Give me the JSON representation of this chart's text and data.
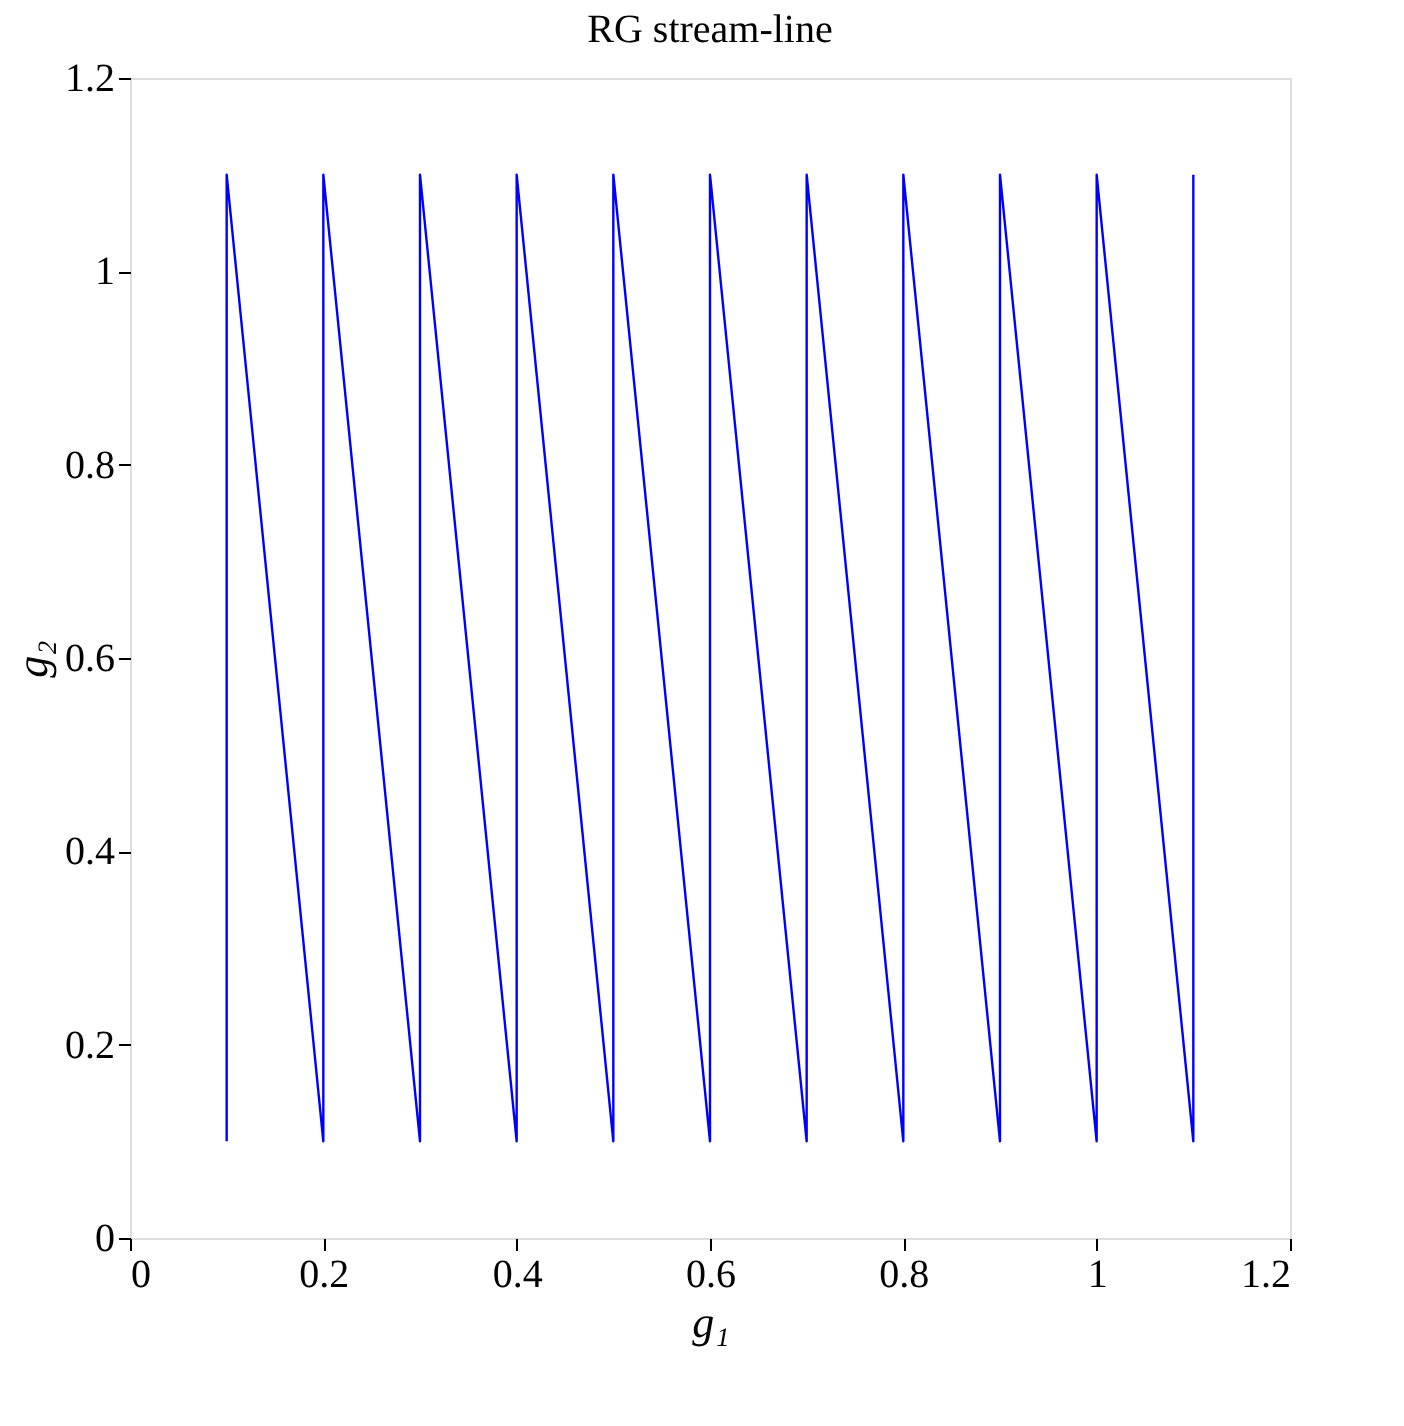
{
  "chart_data": {
    "type": "line",
    "title": "RG stream-line",
    "xlabel": "g₁",
    "ylabel": "g₂",
    "x": [
      0.1,
      0.1,
      0.2,
      0.2,
      0.3,
      0.3,
      0.4,
      0.4,
      0.5,
      0.5,
      0.6,
      0.6,
      0.7,
      0.7,
      0.8,
      0.8,
      0.9,
      0.9,
      1.0,
      1.0,
      1.1,
      1.1
    ],
    "series": [
      {
        "color": "#0000ff",
        "values": [
          0.1,
          1.1,
          0.1,
          1.1,
          0.1,
          1.1,
          0.1,
          1.1,
          0.1,
          1.1,
          0.1,
          1.1,
          0.1,
          1.1,
          0.1,
          1.1,
          0.1,
          1.1,
          0.1,
          1.1,
          0.1,
          1.1
        ]
      }
    ],
    "xlim": [
      0,
      1.2
    ],
    "ylim": [
      0,
      1.2
    ],
    "xticks": [
      0,
      0.2,
      0.4,
      0.6,
      0.8,
      1,
      1.2
    ],
    "yticks": [
      0,
      0.2,
      0.4,
      0.6,
      0.8,
      1,
      1.2
    ],
    "grid": false,
    "marker": "none",
    "line_style": "solid"
  }
}
